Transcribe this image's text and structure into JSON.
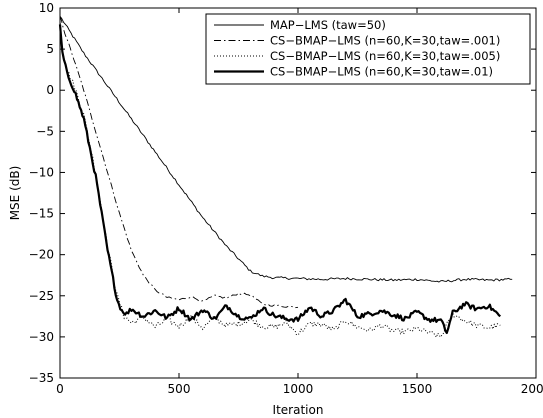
{
  "chart_data": {
    "type": "line",
    "title": "",
    "xlabel": "Iteration",
    "ylabel": "MSE (dB)",
    "xlim": [
      0,
      2000
    ],
    "ylim": [
      -35,
      10
    ],
    "xticks": [
      0,
      500,
      1000,
      1500,
      2000
    ],
    "yticks": [
      10,
      5,
      0,
      -5,
      -10,
      -15,
      -20,
      -25,
      -30,
      -35
    ],
    "grid": false,
    "legend_position": "top-right",
    "series": [
      {
        "name": "MAP−LMS (taw=50)",
        "style": "solid-thin",
        "x": [
          0,
          100,
          200,
          300,
          400,
          500,
          600,
          700,
          800,
          850,
          900,
          1000,
          1100,
          1200,
          1300,
          1400,
          1500,
          1600,
          1700,
          1800,
          1900
        ],
        "y": [
          9,
          4.5,
          0.5,
          -3.5,
          -7.5,
          -11.5,
          -15.5,
          -19,
          -22,
          -22.6,
          -22.8,
          -22.9,
          -23.0,
          -22.9,
          -23.0,
          -23.1,
          -23.0,
          -23.3,
          -23.0,
          -23.1,
          -23.0
        ]
      },
      {
        "name": "CS−BMAP−LMS (n=60,K=30,taw=.001)",
        "style": "dashdot",
        "x": [
          0,
          20,
          50,
          100,
          150,
          200,
          250,
          300,
          350,
          400,
          450,
          500,
          550,
          600,
          650,
          700,
          750,
          800,
          850,
          900,
          950,
          1000
        ],
        "y": [
          9,
          7,
          4.5,
          0,
          -5,
          -10,
          -15,
          -19.5,
          -22.5,
          -24.3,
          -25.2,
          -25.5,
          -25.1,
          -25.7,
          -25.0,
          -25.3,
          -24.7,
          -24.9,
          -26.0,
          -26.2,
          -26.3,
          -26.4
        ]
      },
      {
        "name": "CS−BMAP−LMS (n=60,K=30,taw=.005)",
        "style": "dotted",
        "x": [
          0,
          10,
          30,
          60,
          100,
          150,
          200,
          240,
          270,
          300,
          350,
          400,
          450,
          500,
          550,
          600,
          650,
          700,
          750,
          800,
          850,
          900,
          950,
          1000,
          1050,
          1100,
          1150,
          1200,
          1250,
          1300,
          1350,
          1400,
          1450,
          1500,
          1550,
          1600,
          1650,
          1700,
          1750,
          1800,
          1850
        ],
        "y": [
          8.5,
          5,
          2.5,
          0.5,
          -3,
          -10,
          -19,
          -25,
          -27.5,
          -28.3,
          -27.6,
          -28.8,
          -27.9,
          -28.7,
          -27.6,
          -28.9,
          -27.7,
          -28.6,
          -28.4,
          -27.9,
          -28.7,
          -28.8,
          -28.3,
          -29.6,
          -28.4,
          -28.5,
          -29.2,
          -28.0,
          -28.8,
          -29.2,
          -28.6,
          -29.3,
          -29.4,
          -29.0,
          -29.5,
          -30.0,
          -27.2,
          -28.0,
          -28.6,
          -28.9,
          -28.6
        ]
      },
      {
        "name": "CS−BMAP−LMS (n=60,K=30,taw=.01)",
        "style": "solid-thick-dotted",
        "x": [
          0,
          10,
          30,
          60,
          100,
          150,
          200,
          240,
          260,
          280,
          300,
          350,
          400,
          450,
          500,
          550,
          600,
          650,
          700,
          750,
          800,
          850,
          900,
          950,
          1000,
          1050,
          1100,
          1150,
          1200,
          1250,
          1300,
          1350,
          1400,
          1450,
          1500,
          1550,
          1600,
          1625,
          1650,
          1700,
          1750,
          1800,
          1850
        ],
        "y": [
          8,
          4.5,
          2,
          0,
          -3.5,
          -10.5,
          -19.5,
          -25.5,
          -26.8,
          -27.2,
          -26.6,
          -27.5,
          -26.8,
          -27.7,
          -26.5,
          -27.9,
          -26.7,
          -27.8,
          -26.2,
          -27.5,
          -27.8,
          -26.5,
          -27.4,
          -27.8,
          -27.9,
          -26.4,
          -27.5,
          -26.8,
          -25.5,
          -27.5,
          -27.2,
          -26.8,
          -27.3,
          -27.8,
          -27.0,
          -27.9,
          -28.0,
          -29.5,
          -27.1,
          -26.0,
          -26.6,
          -26.2,
          -27.5
        ]
      }
    ]
  }
}
